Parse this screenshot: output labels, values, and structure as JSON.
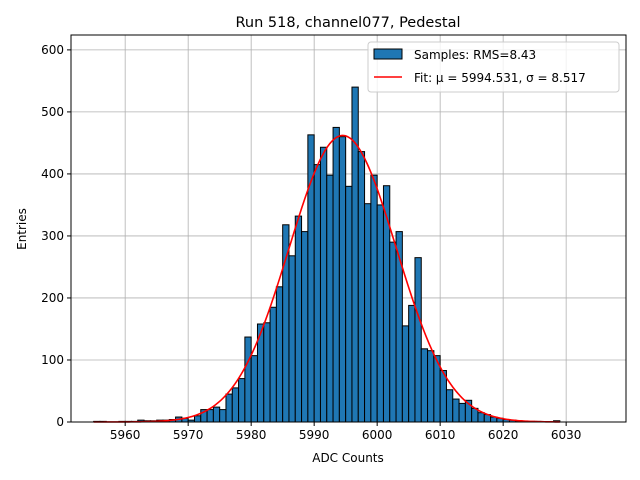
{
  "chart_data": {
    "type": "bar",
    "title": "Run 518, channel077, Pedestal",
    "xlabel": "ADC Counts",
    "ylabel": "Entries",
    "xlim": [
      5951.4,
      6039.5
    ],
    "ylim": [
      0,
      624
    ],
    "grid": true,
    "legend_position": "top-right",
    "x_ticks": [
      5960,
      5970,
      5980,
      5990,
      6000,
      6010,
      6020,
      6030
    ],
    "y_ticks": [
      0,
      100,
      200,
      300,
      400,
      500,
      600
    ],
    "bin_width": 1,
    "bin_start": 5955,
    "values": [
      1,
      1,
      0,
      0,
      1,
      1,
      1,
      3,
      2,
      2,
      3,
      3,
      4,
      8,
      6,
      3,
      10,
      20,
      20,
      24,
      20,
      45,
      55,
      70,
      137,
      107,
      158,
      160,
      185,
      218,
      318,
      268,
      332,
      307,
      463,
      415,
      443,
      398,
      475,
      460,
      380,
      540,
      436,
      352,
      398,
      350,
      381,
      290,
      307,
      155,
      188,
      265,
      118,
      115,
      107,
      83,
      52,
      37,
      30,
      35,
      22,
      15,
      12,
      8,
      6,
      4,
      3,
      2,
      1,
      1,
      1,
      0,
      0,
      2
    ],
    "fit": {
      "mu": 5994.531,
      "sigma": 8.517,
      "amplitude": 462
    },
    "colors": {
      "bars": "#1f77b4",
      "fit": "#ff0000"
    },
    "legend": [
      {
        "label": "Samples: RMS=8.43",
        "kind": "patch"
      },
      {
        "label": "Fit: μ = 5994.531, σ = 8.517",
        "kind": "line"
      }
    ]
  }
}
